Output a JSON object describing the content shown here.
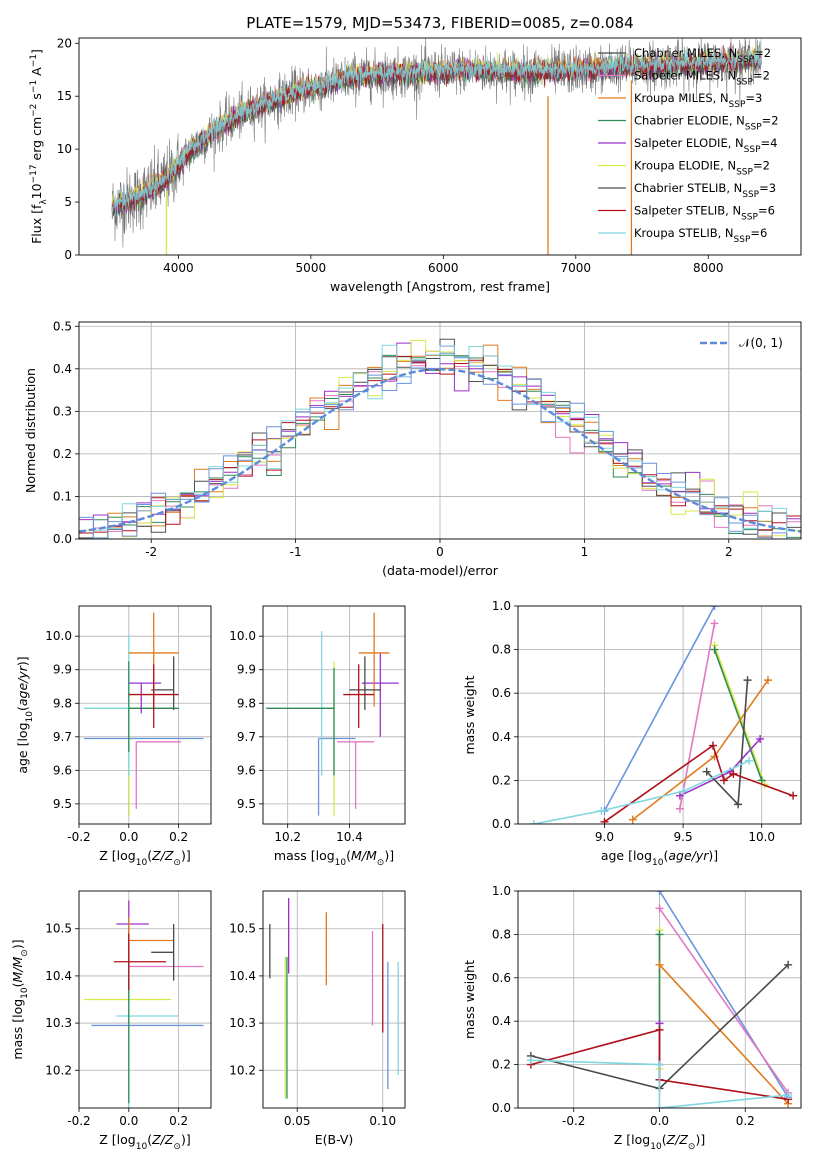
{
  "figure_title": "PLATE=1579, MJD=53473, FIBERID=0085, z=0.084",
  "colors": {
    "Chabrier MILES": "#4a4a4a",
    "Salpeter MILES": "#e377c2",
    "Kroupa MILES": "#e07a1f",
    "Chabrier ELODIE": "#2e8b57",
    "Salpeter ELODIE": "#9b30c8",
    "Kroupa ELODIE": "#d8e84a",
    "Chabrier STELIB": "#505050",
    "Salpeter STELIB": "#b0101a",
    "Kroupa STELIB": "#7fd6e0",
    "extra": "#6a94dc",
    "gaussian": "#5b8bd8"
  },
  "chart_data": [
    {
      "type": "line",
      "id": "spectrum",
      "title": "PLATE=1579, MJD=53473, FIBERID=0085, z=0.084",
      "xlabel": "wavelength [Angstrom, rest frame]",
      "ylabel": "Flux [f_λ10⁻¹⁷ erg cm⁻² s⁻¹ A⁻¹]",
      "xlim": [
        3250,
        8700
      ],
      "ylim": [
        0,
        20.5
      ],
      "xticks": [
        4000,
        5000,
        6000,
        7000,
        8000
      ],
      "yticks": [
        0,
        5,
        10,
        15,
        20
      ],
      "grid": false,
      "legend_position": "right",
      "continuum_x": [
        3500,
        3700,
        3900,
        4000,
        4100,
        4300,
        4500,
        4700,
        4900,
        5100,
        5300,
        5500,
        5800,
        6200,
        6600,
        7000,
        7400,
        7800,
        8200,
        8400
      ],
      "continuum_y": [
        4.5,
        5.5,
        7.0,
        8.5,
        10.0,
        12.0,
        13.5,
        14.5,
        15.5,
        16.0,
        16.8,
        17.0,
        17.2,
        17.5,
        17.3,
        17.4,
        17.8,
        18.0,
        18.3,
        18.5
      ],
      "data_x_range": [
        3500,
        8400
      ],
      "series": [
        {
          "name": "Chabrier MILES, N_SSP=2",
          "label_main": "Chabrier MILES, N",
          "sub": "SSP",
          "label_tail": "=2"
        },
        {
          "name": "Salpeter MILES, N_SSP=2",
          "label_main": "Salpeter MILES, N",
          "sub": "SSP",
          "label_tail": "=2"
        },
        {
          "name": "Kroupa MILES, N_SSP=3",
          "label_main": "Kroupa MILES, N",
          "sub": "SSP",
          "label_tail": "=3"
        },
        {
          "name": "Chabrier ELODIE, N_SSP=2",
          "label_main": "Chabrier ELODIE, N",
          "sub": "SSP",
          "label_tail": "=2"
        },
        {
          "name": "Salpeter ELODIE, N_SSP=4",
          "label_main": "Salpeter ELODIE, N",
          "sub": "SSP",
          "label_tail": "=4"
        },
        {
          "name": "Kroupa ELODIE, N_SSP=2",
          "label_main": "Kroupa ELODIE, N",
          "sub": "SSP",
          "label_tail": "=2"
        },
        {
          "name": "Chabrier STELIB, N_SSP=3",
          "label_main": "Chabrier STELIB, N",
          "sub": "SSP",
          "label_tail": "=3"
        },
        {
          "name": "Salpeter STELIB, N_SSP=6",
          "label_main": "Salpeter STELIB, N",
          "sub": "SSP",
          "label_tail": "=6"
        },
        {
          "name": "Kroupa STELIB, N_SSP=6",
          "label_main": "Kroupa STELIB, N",
          "sub": "SSP",
          "label_tail": "=6"
        }
      ],
      "series_colors": [
        "#4a4a4a",
        "#e377c2",
        "#e07a1f",
        "#2e8b57",
        "#9b30c8",
        "#d8e84a",
        "#505050",
        "#b0101a",
        "#7fd6e0"
      ],
      "spikes": [
        {
          "x": 3910,
          "ymax": 6.0,
          "color": "#d8e84a"
        },
        {
          "x": 6790,
          "ymax": 15.0,
          "color": "#e07a1f"
        },
        {
          "x": 7420,
          "ymax": 16.5,
          "color": "#e07a1f"
        }
      ]
    },
    {
      "type": "histogram",
      "id": "residuals",
      "xlabel": "(data-model)/error",
      "ylabel": "Normed distribution",
      "xlim": [
        -2.5,
        2.5
      ],
      "ylim": [
        0,
        0.51
      ],
      "xticks": [
        -2,
        -1,
        0,
        1,
        2
      ],
      "yticks": [
        0.0,
        0.1,
        0.2,
        0.3,
        0.4,
        0.5
      ],
      "grid": true,
      "legend_position": "top-right",
      "legend_label": "𝒩(0, 1)",
      "bin_width": 0.1,
      "bin_start": -2.5,
      "series_colors": [
        "#e377c2",
        "#e07a1f",
        "#2e8b57",
        "#9b30c8",
        "#d8e84a",
        "#505050",
        "#b0101a",
        "#7fd6e0",
        "#6a94dc"
      ]
    },
    {
      "type": "errorbar",
      "id": "age-vs-Z",
      "xlabel": "Z [log10(Z/Z⊙)]",
      "ylabel": "age  [log10(age/yr)]",
      "xlim": [
        -0.2,
        0.33
      ],
      "ylim": [
        9.44,
        10.09
      ],
      "xticks": [
        -0.2,
        0.0,
        0.2
      ],
      "yticks": [
        9.5,
        9.6,
        9.7,
        9.8,
        9.9,
        10.0
      ],
      "grid": true,
      "points": [
        {
          "x": 0.0,
          "xerr": [
            0.18,
            0.3
          ],
          "y": 9.695,
          "yerr": [
            0.23,
            0.0
          ],
          "color": "#6a94dc"
        },
        {
          "x": 0.03,
          "xerr": [
            0.0,
            0.18
          ],
          "y": 9.685,
          "yerr": [
            0.2,
            0.0
          ],
          "color": "#e377c2"
        },
        {
          "x": 0.0,
          "xerr": [
            0.18,
            0.18
          ],
          "y": 9.785,
          "yerr": [
            0.32,
            0.0
          ],
          "color": "#d8e84a"
        },
        {
          "x": 0.0,
          "xerr": [
            0.18,
            0.18
          ],
          "y": 9.785,
          "yerr": [
            0.2,
            0.22
          ],
          "color": "#7fd6e0"
        },
        {
          "x": 0.0,
          "xerr": [
            0.0,
            0.2
          ],
          "y": 9.785,
          "yerr": [
            0.13,
            0.14
          ],
          "color": "#2e8b57"
        },
        {
          "x": 0.05,
          "xerr": [
            0.05,
            0.08
          ],
          "y": 9.86,
          "yerr": [
            0.09,
            0.0
          ],
          "color": "#9b30c8"
        },
        {
          "x": 0.1,
          "xerr": [
            0.1,
            0.1
          ],
          "y": 9.95,
          "yerr": [
            0.16,
            0.12
          ],
          "color": "#e07a1f"
        },
        {
          "x": 0.18,
          "xerr": [
            0.09,
            0.0
          ],
          "y": 9.84,
          "yerr": [
            0.06,
            0.1
          ],
          "color": "#4a4a4a"
        },
        {
          "x": 0.1,
          "xerr": [
            0.1,
            0.1
          ],
          "y": 9.826,
          "yerr": [
            0.1,
            0.09
          ],
          "color": "#b0101a"
        }
      ]
    },
    {
      "type": "errorbar",
      "id": "age-vs-mass",
      "xlabel": "mass [log10(M/M⊙)]",
      "ylabel": "",
      "xlim": [
        10.12,
        10.58
      ],
      "ylim": [
        9.44,
        10.09
      ],
      "xticks": [
        10.2,
        10.4
      ],
      "yticks": [
        9.5,
        9.6,
        9.7,
        9.8,
        9.9,
        10.0
      ],
      "grid": true,
      "points": [
        {
          "x": 10.3,
          "xerr": [
            0.0,
            0.12
          ],
          "y": 9.695,
          "yerr": [
            0.23,
            0.0
          ],
          "color": "#6a94dc"
        },
        {
          "x": 10.42,
          "xerr": [
            0.06,
            0.06
          ],
          "y": 9.685,
          "yerr": [
            0.2,
            0.0
          ],
          "color": "#e377c2"
        },
        {
          "x": 10.35,
          "xerr": [
            0.0,
            0.0
          ],
          "y": 9.785,
          "yerr": [
            0.32,
            0.14
          ],
          "color": "#d8e84a"
        },
        {
          "x": 10.31,
          "xerr": [
            0.0,
            0.04
          ],
          "y": 9.785,
          "yerr": [
            0.2,
            0.23
          ],
          "color": "#7fd6e0"
        },
        {
          "x": 10.35,
          "xerr": [
            0.22,
            0.0
          ],
          "y": 9.785,
          "yerr": [
            0.2,
            0.12
          ],
          "color": "#2e8b57"
        },
        {
          "x": 10.5,
          "xerr": [
            0.06,
            0.06
          ],
          "y": 9.86,
          "yerr": [
            0.16,
            0.09
          ],
          "color": "#9b30c8"
        },
        {
          "x": 10.48,
          "xerr": [
            0.05,
            0.05
          ],
          "y": 9.95,
          "yerr": [
            0.16,
            0.12
          ],
          "color": "#e07a1f"
        },
        {
          "x": 10.45,
          "xerr": [
            0.05,
            0.05
          ],
          "y": 9.84,
          "yerr": [
            0.06,
            0.1
          ],
          "color": "#4a4a4a"
        },
        {
          "x": 10.43,
          "xerr": [
            0.05,
            0.05
          ],
          "y": 9.826,
          "yerr": [
            0.1,
            0.09
          ],
          "color": "#b0101a"
        }
      ]
    },
    {
      "type": "line",
      "id": "weight-vs-age",
      "xlabel": "age  [log10(age/yr)]",
      "ylabel": "mass weight",
      "xlim": [
        8.45,
        10.25
      ],
      "ylim": [
        0,
        1.0
      ],
      "xticks": [
        9.0,
        9.5,
        10.0
      ],
      "yticks": [
        0.0,
        0.2,
        0.4,
        0.6,
        0.8,
        1.0
      ],
      "grid": true,
      "series": [
        {
          "color": "#6a94dc",
          "x": [
            9.0,
            9.7
          ],
          "y": [
            0.06,
            1.0
          ]
        },
        {
          "color": "#e377c2",
          "x": [
            9.48,
            9.7
          ],
          "y": [
            0.07,
            0.92
          ]
        },
        {
          "color": "#d8e84a",
          "x": [
            9.7,
            10.02
          ],
          "y": [
            0.82,
            0.18
          ]
        },
        {
          "color": "#2e8b57",
          "x": [
            9.7,
            10.0
          ],
          "y": [
            0.8,
            0.2
          ]
        },
        {
          "color": "#e07a1f",
          "x": [
            9.18,
            9.7,
            10.04
          ],
          "y": [
            0.02,
            0.31,
            0.66
          ]
        },
        {
          "color": "#9b30c8",
          "x": [
            9.48,
            9.8,
            9.99
          ],
          "y": [
            0.13,
            0.24,
            0.39
          ]
        },
        {
          "color": "#4a4a4a",
          "x": [
            9.65,
            9.85,
            9.91
          ],
          "y": [
            0.24,
            0.09,
            0.66
          ]
        },
        {
          "color": "#b0101a",
          "x": [
            9.0,
            9.69,
            9.76,
            9.82,
            10.2
          ],
          "y": [
            0.01,
            0.36,
            0.2,
            0.23,
            0.13
          ]
        },
        {
          "color": "#7fd6e0",
          "x": [
            8.55,
            8.98,
            9.5,
            9.92
          ],
          "y": [
            0.0,
            0.06,
            0.15,
            0.29
          ]
        }
      ]
    },
    {
      "type": "errorbar",
      "id": "mass-vs-Z",
      "xlabel": "Z [log10(Z/Z⊙)]",
      "ylabel": "mass [log10(M/M⊙)]",
      "xlim": [
        -0.2,
        0.33
      ],
      "ylim": [
        10.12,
        10.58
      ],
      "xticks": [
        -0.2,
        0.0,
        0.2
      ],
      "yticks": [
        10.2,
        10.3,
        10.4,
        10.5
      ],
      "grid": true,
      "points": [
        {
          "x": 0.0,
          "xerr": [
            0.15,
            0.3
          ],
          "y": 10.295,
          "yerr": [
            0.0,
            0.0
          ],
          "color": "#6a94dc"
        },
        {
          "x": 0.0,
          "xerr": [
            0.0,
            0.3
          ],
          "y": 10.42,
          "yerr": [
            0.12,
            0.1
          ],
          "color": "#e377c2"
        },
        {
          "x": 0.0,
          "xerr": [
            0.18,
            0.17
          ],
          "y": 10.35,
          "yerr": [
            0.22,
            0.1
          ],
          "color": "#d8e84a"
        },
        {
          "x": 0.0,
          "xerr": [
            0.05,
            0.2
          ],
          "y": 10.315,
          "yerr": [
            0.2,
            0.12
          ],
          "color": "#7fd6e0"
        },
        {
          "x": 0.0,
          "xerr": [
            0.0,
            0.0
          ],
          "y": 10.35,
          "yerr": [
            0.22,
            0.1
          ],
          "color": "#2e8b57"
        },
        {
          "x": 0.0,
          "xerr": [
            0.05,
            0.08
          ],
          "y": 10.51,
          "yerr": [
            0.06,
            0.05
          ],
          "color": "#9b30c8"
        },
        {
          "x": 0.0,
          "xerr": [
            0.0,
            0.18
          ],
          "y": 10.475,
          "yerr": [
            0.05,
            0.05
          ],
          "color": "#e07a1f"
        },
        {
          "x": 0.18,
          "xerr": [
            0.09,
            0.0
          ],
          "y": 10.45,
          "yerr": [
            0.06,
            0.06
          ],
          "color": "#4a4a4a"
        },
        {
          "x": 0.0,
          "xerr": [
            0.06,
            0.15
          ],
          "y": 10.43,
          "yerr": [
            0.06,
            0.06
          ],
          "color": "#b0101a"
        }
      ]
    },
    {
      "type": "errorbar",
      "id": "mass-vs-ebv",
      "xlabel": "E(B-V)",
      "ylabel": "",
      "xlim": [
        0.03,
        0.113
      ],
      "ylim": [
        10.12,
        10.58
      ],
      "xticks": [
        0.05,
        0.1
      ],
      "yticks": [
        10.2,
        10.3,
        10.4,
        10.5
      ],
      "grid": true,
      "points": [
        {
          "x": 0.034,
          "y": 10.455,
          "yerr": [
            0.06,
            0.055
          ],
          "color": "#4a4a4a"
        },
        {
          "x": 0.043,
          "y": 10.29,
          "yerr": [
            0.15,
            0.15
          ],
          "color": "#d8e84a"
        },
        {
          "x": 0.044,
          "y": 10.29,
          "yerr": [
            0.15,
            0.15
          ],
          "color": "#2e8b57"
        },
        {
          "x": 0.045,
          "y": 10.485,
          "yerr": [
            0.08,
            0.08
          ],
          "color": "#9b30c8"
        },
        {
          "x": 0.067,
          "y": 10.455,
          "yerr": [
            0.075,
            0.08
          ],
          "color": "#e07a1f"
        },
        {
          "x": 0.094,
          "y": 10.395,
          "yerr": [
            0.1,
            0.1
          ],
          "color": "#e377c2"
        },
        {
          "x": 0.1,
          "y": 10.4,
          "yerr": [
            0.12,
            0.11
          ],
          "color": "#b0101a"
        },
        {
          "x": 0.103,
          "y": 10.295,
          "yerr": [
            0.135,
            0.135
          ],
          "color": "#6a94dc"
        },
        {
          "x": 0.109,
          "y": 10.31,
          "yerr": [
            0.12,
            0.12
          ],
          "color": "#7fd6e0"
        }
      ]
    },
    {
      "type": "line",
      "id": "weight-vs-Z",
      "xlabel": "Z [log10(Z/Z⊙)]",
      "ylabel": "mass weight",
      "xlim": [
        -0.33,
        0.33
      ],
      "ylim": [
        0,
        1.0
      ],
      "xticks": [
        -0.2,
        0.0,
        0.2
      ],
      "yticks": [
        0.0,
        0.2,
        0.4,
        0.6,
        0.8,
        1.0
      ],
      "grid": true,
      "series": [
        {
          "color": "#6a94dc",
          "x": [
            0.0,
            0.3
          ],
          "y": [
            1.0,
            0.05
          ]
        },
        {
          "color": "#e377c2",
          "x": [
            0.0,
            0.3
          ],
          "y": [
            0.92,
            0.07
          ]
        },
        {
          "color": "#d8e84a",
          "x": [
            0.0,
            0.0
          ],
          "y": [
            0.82,
            0.18
          ]
        },
        {
          "color": "#2e8b57",
          "x": [
            0.0,
            0.0
          ],
          "y": [
            0.8,
            0.2
          ]
        },
        {
          "color": "#e07a1f",
          "x": [
            0.0,
            0.3
          ],
          "y": [
            0.66,
            0.02
          ]
        },
        {
          "color": "#9b30c8",
          "x": [
            0.0,
            0.0
          ],
          "y": [
            0.39,
            0.13
          ]
        },
        {
          "color": "#4a4a4a",
          "x": [
            -0.3,
            0.0,
            0.3
          ],
          "y": [
            0.24,
            0.09,
            0.66
          ]
        },
        {
          "color": "#b0101a",
          "x": [
            -0.3,
            0.0,
            0.0,
            0.3
          ],
          "y": [
            0.2,
            0.36,
            0.13,
            0.04
          ]
        },
        {
          "color": "#7fd6e0",
          "x": [
            -0.3,
            0.0,
            0.0,
            0.3
          ],
          "y": [
            0.22,
            0.2,
            0.0,
            0.06
          ]
        }
      ]
    }
  ]
}
